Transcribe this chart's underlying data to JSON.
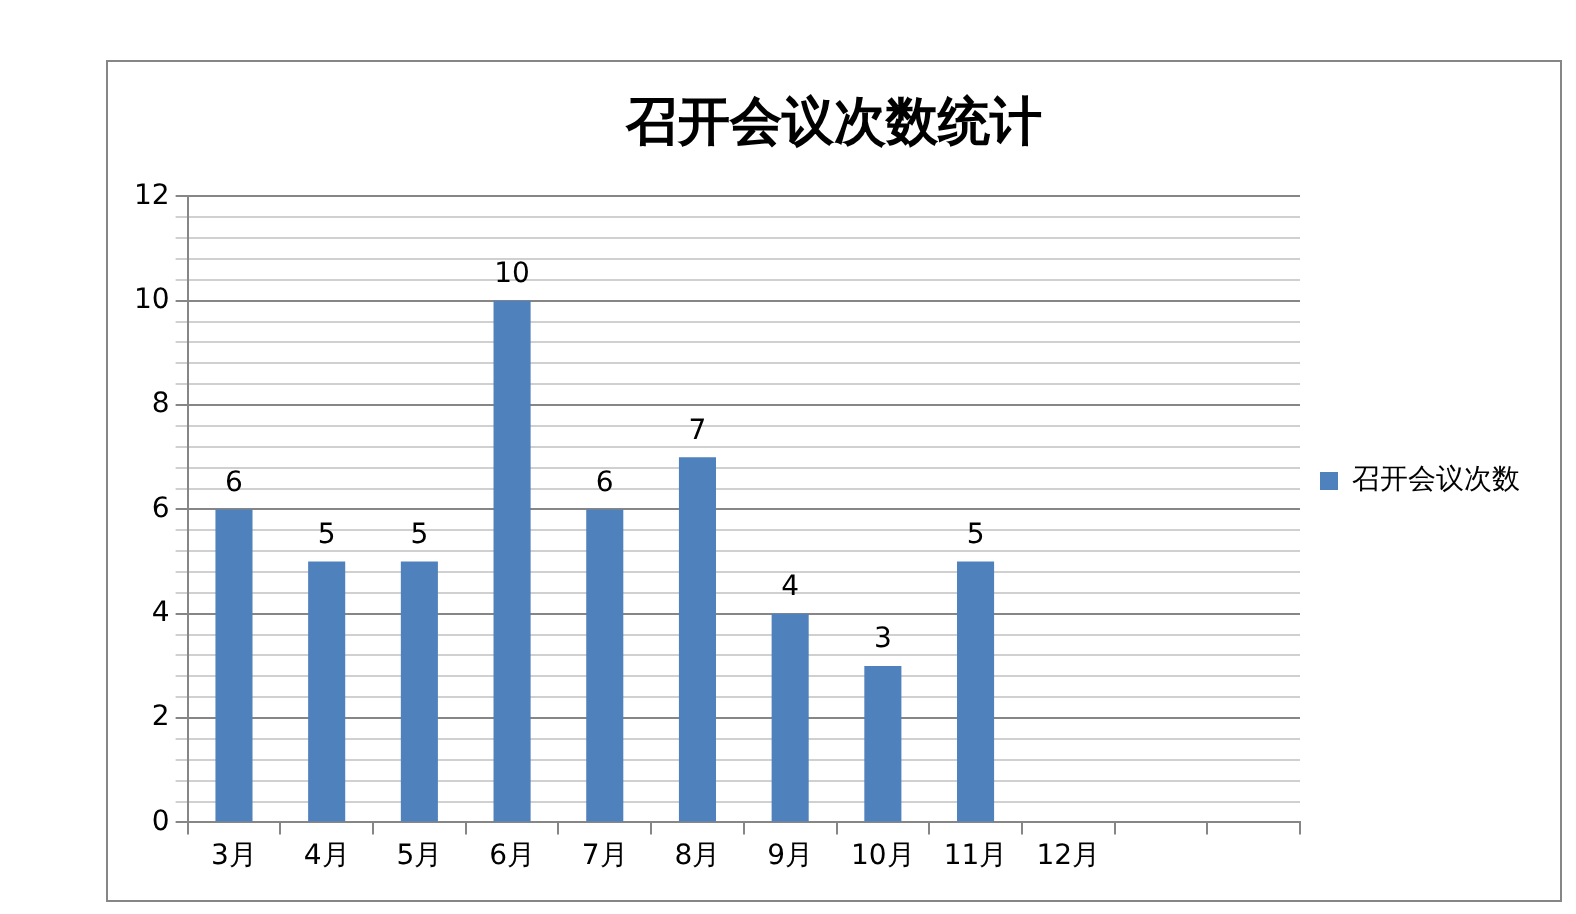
{
  "chart_data": {
    "type": "bar",
    "title": "召开会议次数统计",
    "categories": [
      "3月",
      "4月",
      "5月",
      "6月",
      "7月",
      "8月",
      "9月",
      "10月",
      "11月",
      "12月",
      null,
      null
    ],
    "series": [
      {
        "name": "召开会议次数",
        "color": "#4f81bd",
        "values": [
          6,
          5,
          5,
          10,
          6,
          7,
          4,
          3,
          5,
          null,
          null,
          null
        ]
      }
    ],
    "ylim": [
      0,
      12
    ],
    "yticks": [
      0,
      {
        "value": 0.4,
        "label": null
      },
      {
        "value": 0.8,
        "label": null
      },
      {
        "value": 1.2,
        "label": null
      },
      {
        "value": 1.6,
        "label": null
      },
      2,
      {
        "value": 2.4,
        "label": null
      },
      {
        "value": 2.8,
        "label": null
      },
      {
        "value": 3.2,
        "label": null
      },
      {
        "value": 3.6,
        "label": null
      },
      4,
      {
        "value": 4.4,
        "label": null
      },
      {
        "value": 4.8,
        "label": null
      },
      {
        "value": 5.2,
        "label": null
      },
      {
        "value": 5.6,
        "label": null
      },
      6,
      {
        "value": 6.4,
        "label": null
      },
      {
        "value": 6.8,
        "label": null
      },
      {
        "value": 7.2,
        "label": null
      },
      {
        "value": 7.6,
        "label": null
      },
      8,
      {
        "value": 8.4,
        "label": null
      },
      {
        "value": 8.8,
        "label": null
      },
      {
        "value": 9.2,
        "label": null
      },
      {
        "value": 9.6,
        "label": null
      },
      10,
      {
        "value": 10.4,
        "label": null
      },
      {
        "value": 10.8,
        "label": null
      },
      {
        "value": 11.2,
        "label": null
      },
      {
        "value": 11.6,
        "label": null
      },
      12
    ],
    "grid": "y",
    "legend": "right",
    "data_labels": true
  }
}
